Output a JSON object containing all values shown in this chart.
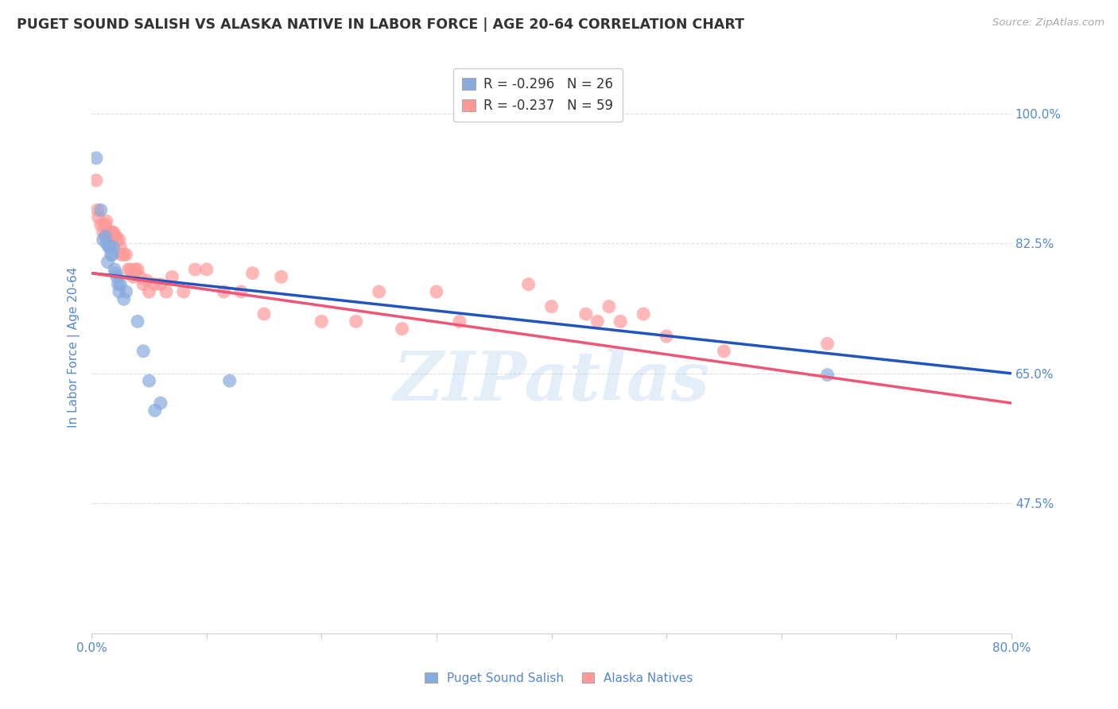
{
  "title": "PUGET SOUND SALISH VS ALASKA NATIVE IN LABOR FORCE | AGE 20-64 CORRELATION CHART",
  "source": "Source: ZipAtlas.com",
  "ylabel": "In Labor Force | Age 20-64",
  "xlim": [
    0.0,
    0.8
  ],
  "ylim": [
    0.3,
    1.07
  ],
  "yticks": [
    0.475,
    0.65,
    0.825,
    1.0
  ],
  "ytick_labels": [
    "47.5%",
    "65.0%",
    "82.5%",
    "100.0%"
  ],
  "xticks": [
    0.0,
    0.1,
    0.2,
    0.3,
    0.4,
    0.5,
    0.6,
    0.7,
    0.8
  ],
  "xtick_labels": [
    "0.0%",
    "",
    "",
    "",
    "",
    "",
    "",
    "",
    "80.0%"
  ],
  "legend_r1": "-0.296",
  "legend_n1": "26",
  "legend_r2": "-0.237",
  "legend_n2": "59",
  "watermark": "ZIPatlas",
  "blue_scatter_color": "#88AADD",
  "pink_scatter_color": "#FF9999",
  "blue_line_color": "#2255BB",
  "pink_line_color": "#EE5577",
  "axis_label_color": "#5588CC",
  "grid_color": "#DDDDDD",
  "puget_x": [
    0.008,
    0.01,
    0.012,
    0.013,
    0.014,
    0.015,
    0.016,
    0.017,
    0.018,
    0.019,
    0.02,
    0.021,
    0.022,
    0.023,
    0.024,
    0.025,
    0.028,
    0.03,
    0.04,
    0.045,
    0.05,
    0.055,
    0.06,
    0.12,
    0.64,
    0.004
  ],
  "puget_y": [
    0.87,
    0.83,
    0.835,
    0.825,
    0.8,
    0.82,
    0.82,
    0.81,
    0.81,
    0.82,
    0.79,
    0.785,
    0.78,
    0.77,
    0.76,
    0.77,
    0.75,
    0.76,
    0.72,
    0.68,
    0.64,
    0.6,
    0.61,
    0.64,
    0.648,
    0.94
  ],
  "alaska_x": [
    0.004,
    0.005,
    0.006,
    0.008,
    0.01,
    0.011,
    0.012,
    0.013,
    0.014,
    0.015,
    0.016,
    0.017,
    0.018,
    0.019,
    0.02,
    0.021,
    0.022,
    0.024,
    0.025,
    0.026,
    0.028,
    0.03,
    0.032,
    0.034,
    0.036,
    0.038,
    0.04,
    0.042,
    0.045,
    0.048,
    0.05,
    0.055,
    0.06,
    0.065,
    0.07,
    0.08,
    0.09,
    0.1,
    0.115,
    0.13,
    0.14,
    0.15,
    0.165,
    0.2,
    0.23,
    0.25,
    0.27,
    0.3,
    0.32,
    0.38,
    0.4,
    0.43,
    0.44,
    0.45,
    0.46,
    0.48,
    0.5,
    0.55,
    0.64
  ],
  "alaska_y": [
    0.91,
    0.87,
    0.86,
    0.85,
    0.84,
    0.85,
    0.85,
    0.855,
    0.84,
    0.83,
    0.835,
    0.84,
    0.84,
    0.84,
    0.835,
    0.835,
    0.83,
    0.83,
    0.82,
    0.81,
    0.81,
    0.81,
    0.79,
    0.79,
    0.78,
    0.79,
    0.79,
    0.78,
    0.77,
    0.775,
    0.76,
    0.77,
    0.77,
    0.76,
    0.78,
    0.76,
    0.79,
    0.79,
    0.76,
    0.76,
    0.785,
    0.73,
    0.78,
    0.72,
    0.72,
    0.76,
    0.71,
    0.76,
    0.72,
    0.77,
    0.74,
    0.73,
    0.72,
    0.74,
    0.72,
    0.73,
    0.7,
    0.68,
    0.69
  ]
}
